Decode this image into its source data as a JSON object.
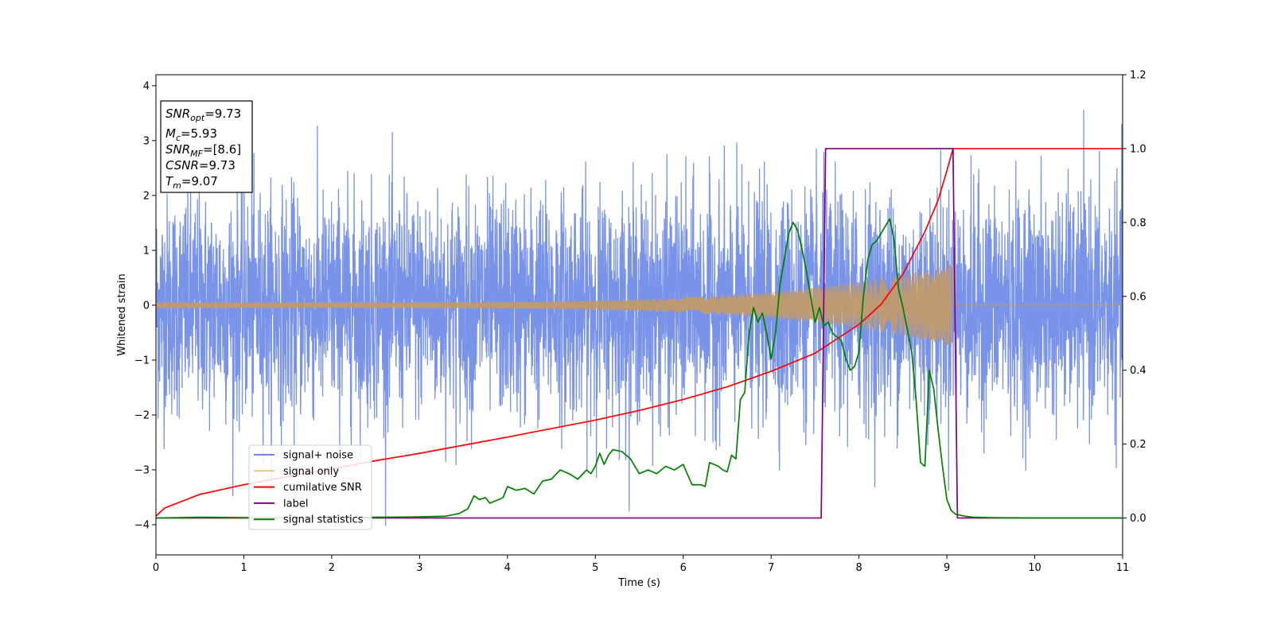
{
  "chart_data": {
    "type": "line",
    "xlabel": "Time (s)",
    "ylabel": "Whitened strain",
    "xlim": [
      0,
      11
    ],
    "ylim": [
      -4.55,
      4.2
    ],
    "y2lim": [
      -0.1,
      1.2
    ],
    "x_ticks": [
      "0",
      "1",
      "2",
      "3",
      "4",
      "5",
      "6",
      "7",
      "8",
      "9",
      "10",
      "11"
    ],
    "y_ticks": [
      "−4",
      "−3",
      "−2",
      "−1",
      "0",
      "1",
      "2",
      "3",
      "4"
    ],
    "y2_ticks": [
      "0.0",
      "0.2",
      "0.4",
      "0.6",
      "0.8",
      "1.0",
      "1.2"
    ],
    "grid": false,
    "legend_position": "lower-left",
    "annotation": {
      "lines": [
        {
          "main": "SNR",
          "sub": "opt",
          "rest": "=9.73"
        },
        {
          "main": "M",
          "sub": "c",
          "rest": "=5.93"
        },
        {
          "main": "SNR",
          "sub": "MF",
          "rest": "=[8.6]"
        },
        {
          "main": "CSNR",
          "sub": "",
          "rest": "=9.73"
        },
        {
          "main": "T",
          "sub": "m",
          "rest": "=9.07"
        }
      ]
    },
    "series": [
      {
        "name": "signal+ noise",
        "color": "#6a87e6",
        "axis": "left",
        "kind": "noise",
        "x_range": [
          0,
          11
        ],
        "approx_std": 1.0,
        "approx_range": [
          -4.15,
          3.8
        ]
      },
      {
        "name": "signal only",
        "color": "#f5c27a",
        "axis": "left",
        "kind": "chirp",
        "x_range": [
          0,
          9.07
        ],
        "amplitude_start": 0.05,
        "amplitude_end": 0.75
      },
      {
        "name": "cumilative SNR",
        "color": "#ff0000",
        "axis": "right",
        "x": [
          0,
          0.1,
          0.5,
          1,
          1.5,
          2,
          2.5,
          3,
          3.5,
          4,
          4.5,
          5,
          5.5,
          6,
          6.5,
          7,
          7.5,
          8,
          8.25,
          8.5,
          8.75,
          8.9,
          9.0,
          9.07,
          11
        ],
        "values": [
          0.005,
          0.027,
          0.064,
          0.09,
          0.112,
          0.133,
          0.155,
          0.175,
          0.197,
          0.219,
          0.242,
          0.265,
          0.291,
          0.321,
          0.355,
          0.397,
          0.446,
          0.524,
          0.578,
          0.66,
          0.775,
          0.86,
          0.94,
          1.0,
          1.0
        ]
      },
      {
        "name": "label",
        "color": "#800080",
        "axis": "right",
        "x": [
          0,
          7.57,
          7.62,
          9.07,
          9.12,
          11
        ],
        "values": [
          0,
          0,
          1,
          1,
          0,
          0
        ]
      },
      {
        "name": "signal statistics",
        "color": "#008000",
        "axis": "right",
        "x": [
          0,
          0.5,
          1,
          2,
          2.5,
          3,
          3.3,
          3.45,
          3.55,
          3.62,
          3.68,
          3.75,
          3.8,
          3.85,
          3.95,
          4.0,
          4.1,
          4.2,
          4.3,
          4.4,
          4.5,
          4.6,
          4.7,
          4.8,
          4.9,
          4.95,
          5.0,
          5.05,
          5.1,
          5.15,
          5.2,
          5.3,
          5.4,
          5.5,
          5.6,
          5.7,
          5.8,
          5.9,
          6.0,
          6.1,
          6.2,
          6.25,
          6.3,
          6.4,
          6.45,
          6.5,
          6.55,
          6.6,
          6.65,
          6.7,
          6.75,
          6.8,
          6.85,
          6.9,
          6.95,
          7.0,
          7.05,
          7.1,
          7.15,
          7.2,
          7.25,
          7.3,
          7.35,
          7.4,
          7.45,
          7.5,
          7.55,
          7.6,
          7.65,
          7.7,
          7.75,
          7.8,
          7.85,
          7.9,
          7.95,
          8.0,
          8.05,
          8.1,
          8.15,
          8.2,
          8.25,
          8.3,
          8.35,
          8.4,
          8.45,
          8.5,
          8.55,
          8.6,
          8.65,
          8.7,
          8.75,
          8.8,
          8.85,
          8.9,
          8.95,
          9.0,
          9.05,
          9.1,
          9.2,
          9.3,
          9.5,
          10,
          11
        ],
        "values": [
          0.0,
          0.002,
          0.001,
          0.001,
          0.002,
          0.003,
          0.005,
          0.012,
          0.025,
          0.06,
          0.05,
          0.055,
          0.04,
          0.045,
          0.055,
          0.085,
          0.075,
          0.08,
          0.065,
          0.1,
          0.105,
          0.13,
          0.12,
          0.105,
          0.13,
          0.12,
          0.14,
          0.175,
          0.145,
          0.17,
          0.185,
          0.18,
          0.16,
          0.12,
          0.13,
          0.12,
          0.14,
          0.13,
          0.145,
          0.09,
          0.09,
          0.085,
          0.15,
          0.14,
          0.13,
          0.125,
          0.17,
          0.16,
          0.32,
          0.34,
          0.5,
          0.57,
          0.53,
          0.555,
          0.5,
          0.43,
          0.5,
          0.63,
          0.7,
          0.77,
          0.8,
          0.78,
          0.73,
          0.67,
          0.6,
          0.53,
          0.57,
          0.52,
          0.53,
          0.5,
          0.49,
          0.48,
          0.43,
          0.4,
          0.41,
          0.45,
          0.6,
          0.7,
          0.74,
          0.75,
          0.77,
          0.79,
          0.81,
          0.75,
          0.62,
          0.57,
          0.51,
          0.45,
          0.32,
          0.15,
          0.14,
          0.4,
          0.35,
          0.24,
          0.14,
          0.05,
          0.02,
          0.01,
          0.005,
          0.002,
          0.001,
          0.0,
          0.0
        ]
      }
    ]
  }
}
